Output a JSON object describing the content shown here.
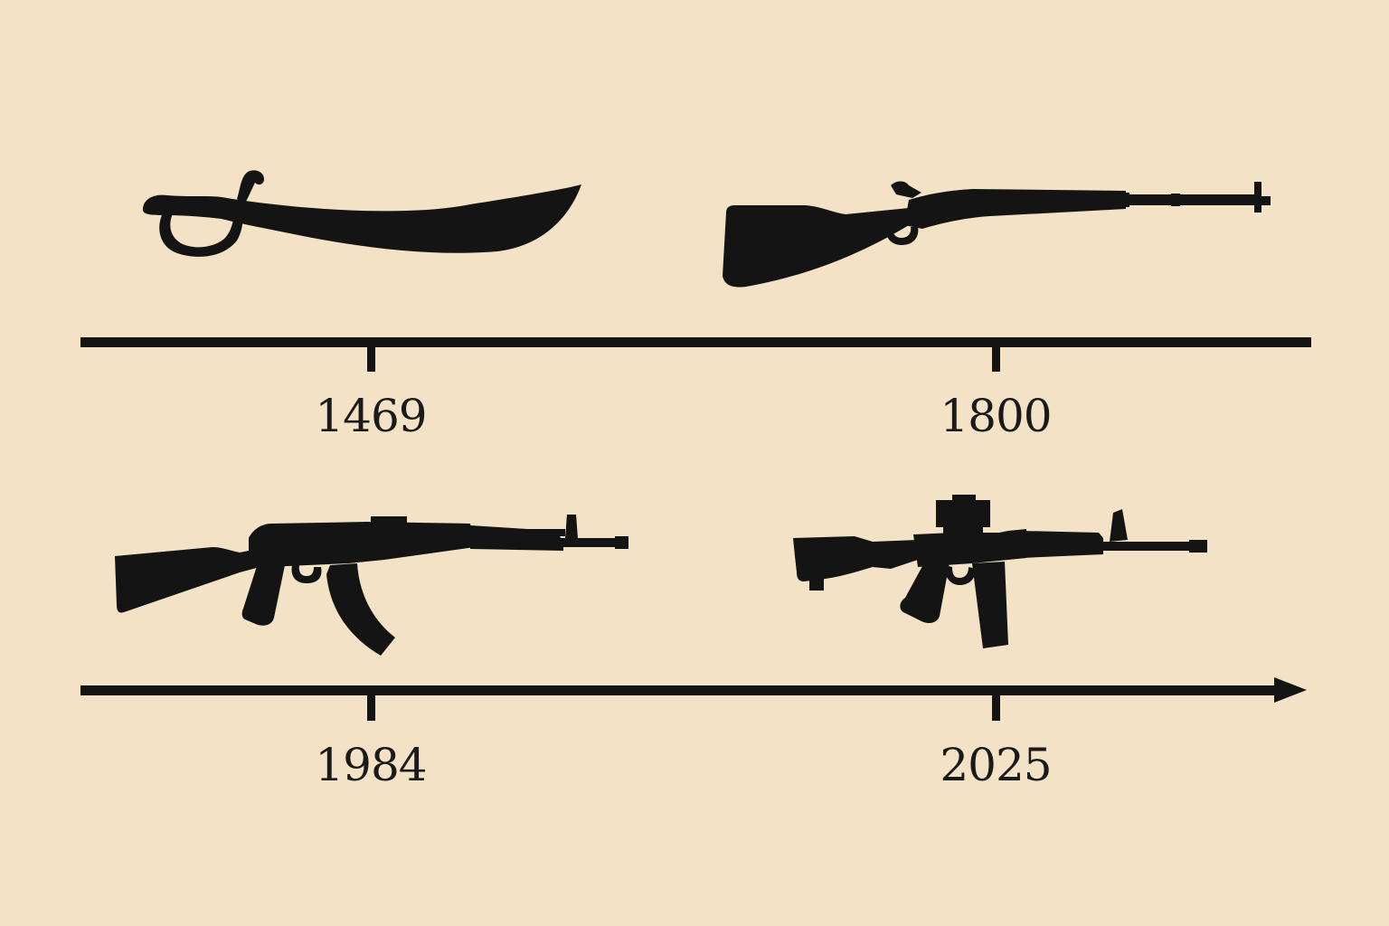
{
  "timeline": {
    "entries": [
      {
        "year": "1469",
        "icon": "sword-icon"
      },
      {
        "year": "1800",
        "icon": "musket-icon"
      },
      {
        "year": "1984",
        "icon": "ak47-icon"
      },
      {
        "year": "2025",
        "icon": "ar15-icon"
      }
    ]
  },
  "colors": {
    "background": "#f3e2c5",
    "ink": "#141414"
  }
}
